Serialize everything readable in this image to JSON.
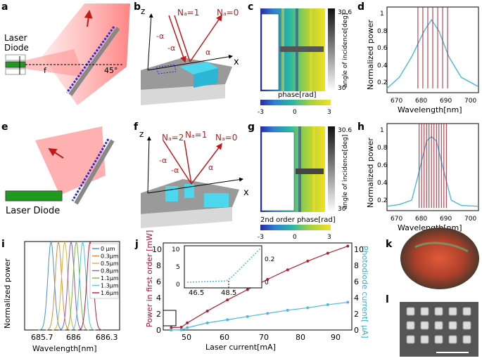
{
  "panels": {
    "a": {
      "letter": "a",
      "source_label_1": "Laser",
      "source_label_2": "Diode",
      "focal_label": "f",
      "angle_label": "45°"
    },
    "b": {
      "letter": "b",
      "z": "z",
      "x": "x",
      "na1": "Nₐ=1",
      "na0": "Nₐ=0",
      "neg_alpha_1": "-α",
      "neg_alpha_2": "-α",
      "alpha_1": "α",
      "alpha_2": "α"
    },
    "c": {
      "letter": "c",
      "colorbar_label": "phase[rad]",
      "ticks": [
        "-3",
        "0",
        "3"
      ],
      "right_label": "angle of incidence[deg]",
      "right_top": "30.6",
      "right_bottom": "30"
    },
    "d": {
      "letter": "d",
      "ylabel": "Normalized power",
      "xlabel": "Wavelength[nm]",
      "xticks": [
        "670",
        "680",
        "690",
        "700"
      ],
      "yticks": [
        "0.2",
        "0.4",
        "0.6",
        "0.8",
        "1"
      ]
    },
    "e": {
      "letter": "e",
      "source_label": "Laser Diode"
    },
    "f": {
      "letter": "f",
      "z": "z",
      "x": "x",
      "na2": "Nₐ=2",
      "na1": "Nₐ=1",
      "na0": "Nₐ=0",
      "neg_alpha_1": "-α",
      "neg_alpha_2": "-α",
      "alpha_1": "α",
      "alpha_2": "α"
    },
    "g": {
      "letter": "g",
      "colorbar_label": "2nd order phase[rad]",
      "ticks": [
        "-3",
        "0",
        "3"
      ],
      "right_label": "angle of incidence[deg]",
      "right_top": "30.6",
      "right_bottom": "30"
    },
    "h": {
      "letter": "h",
      "ylabel": "Normalized power",
      "xlabel": "Wavelength[nm]",
      "xticks": [
        "670",
        "680",
        "690",
        "700"
      ],
      "yticks": [
        "0.2",
        "0.4",
        "0.6",
        "0.8",
        "1"
      ]
    },
    "i": {
      "letter": "i",
      "ylabel": "Normalized power",
      "xlabel": "Wavelength[nm]",
      "xticks": [
        "685.7",
        "686",
        "686.3"
      ],
      "legend": [
        {
          "label": "0",
          "unit": "μm",
          "color": "#4a8fd0"
        },
        {
          "label": "0.3μm",
          "color": "#e0893a"
        },
        {
          "label": "0.5μm",
          "color": "#d8b43a"
        },
        {
          "label": "0.8μm",
          "color": "#8a5ab0"
        },
        {
          "label": "1.1μm",
          "color": "#7ab648"
        },
        {
          "label": "1.3μm",
          "color": "#4dc3e0"
        },
        {
          "label": "1.6μm",
          "color": "#b0203a"
        }
      ]
    },
    "j": {
      "letter": "j",
      "ylabel_left": "Power in first order [mW]",
      "ylabel_right": "Photodiode current[ μA]",
      "xlabel": "Laser current[mA]",
      "xticks": [
        "50",
        "60",
        "70",
        "80",
        "90"
      ],
      "yticks_left": [
        "0",
        "2",
        "4",
        "6",
        "8",
        "10"
      ],
      "yticks_right": [
        "0",
        "2",
        "4",
        "6",
        "8",
        "10"
      ],
      "inset_xticks": [
        "46.5",
        "48.5"
      ],
      "inset_yticks_left": [
        "0",
        "5",
        "10"
      ],
      "inset_yticks_right": [
        "0",
        "0.2"
      ]
    },
    "k": {
      "letter": "k"
    },
    "l": {
      "letter": "l"
    }
  },
  "colors": {
    "red": "#b02030",
    "blue": "#4ab8e0",
    "laser_green": "#1f9a1f",
    "grating": "#2b2bcf"
  },
  "chart_data": [
    {
      "type": "line",
      "title": "",
      "xlabel": "Wavelength[nm]",
      "ylabel": "Normalized power",
      "xlim": [
        665,
        702
      ],
      "ylim": [
        0,
        1
      ],
      "series": [
        {
          "x": [
            665,
            670,
            675,
            680,
            683,
            686,
            690,
            695,
            702
          ],
          "values": [
            0.05,
            0.18,
            0.42,
            0.72,
            0.85,
            0.72,
            0.42,
            0.18,
            0.07
          ]
        },
        {
          "x": [
            677.5,
            679.5,
            681.5,
            683.5,
            685.5,
            687.5,
            689.5
          ],
          "values": [
            1,
            1,
            1,
            1,
            1,
            1,
            1
          ]
        }
      ]
    },
    {
      "type": "line",
      "title": "",
      "xlabel": "Wavelength[nm]",
      "ylabel": "Normalized power",
      "xlim": [
        665,
        702
      ],
      "ylim": [
        0,
        1
      ],
      "series": [
        {
          "x": [
            665,
            670,
            675,
            678,
            681,
            683,
            685,
            688,
            691,
            695,
            702
          ],
          "values": [
            0.05,
            0.07,
            0.12,
            0.45,
            0.8,
            0.85,
            0.8,
            0.45,
            0.12,
            0.06,
            0.05
          ]
        },
        {
          "x": [
            678,
            679,
            680,
            681,
            682,
            683,
            684,
            685,
            686,
            687,
            688,
            689
          ],
          "values": [
            1,
            1,
            1,
            1,
            1,
            1,
            1,
            1,
            1,
            1,
            1,
            1
          ]
        }
      ]
    },
    {
      "type": "line",
      "title": "",
      "xlabel": "Wavelength[nm]",
      "ylabel": "Normalized power",
      "xlim": [
        685.55,
        686.45
      ],
      "ylim": [
        0,
        1
      ],
      "series": [
        {
          "name": "0 μm",
          "x": [
            685.8
          ],
          "values": [
            1
          ]
        },
        {
          "name": "0.3μm",
          "x": [
            685.87
          ],
          "values": [
            1
          ]
        },
        {
          "name": "0.5μm",
          "x": [
            685.93
          ],
          "values": [
            1
          ]
        },
        {
          "name": "0.8μm",
          "x": [
            685.99
          ],
          "values": [
            1
          ]
        },
        {
          "name": "1.1μm",
          "x": [
            686.04
          ],
          "values": [
            1
          ]
        },
        {
          "name": "1.3μm",
          "x": [
            686.1
          ],
          "values": [
            1
          ]
        },
        {
          "name": "1.6μm",
          "x": [
            686.17
          ],
          "values": [
            1
          ]
        }
      ]
    },
    {
      "type": "scatter",
      "title": "",
      "xlabel": "Laser current[mA]",
      "ylabel": "Power in first order [mW]",
      "xlim": [
        44,
        91
      ],
      "ylim": [
        0,
        11
      ],
      "series": [
        {
          "x": [
            46,
            48.5,
            50,
            55,
            60,
            65,
            70,
            75,
            80,
            85,
            90
          ],
          "values": [
            0.3,
            0.35,
            0.9,
            2.4,
            3.8,
            5.1,
            6.4,
            7.6,
            8.7,
            9.7,
            10.6
          ]
        },
        {
          "x": [
            46,
            48.5,
            50,
            55,
            60,
            65,
            70,
            75,
            80,
            85,
            90
          ],
          "values": [
            0,
            0.02,
            0.3,
            0.9,
            1.3,
            1.7,
            2.1,
            2.5,
            2.8,
            3.2,
            3.5
          ]
        }
      ]
    }
  ]
}
